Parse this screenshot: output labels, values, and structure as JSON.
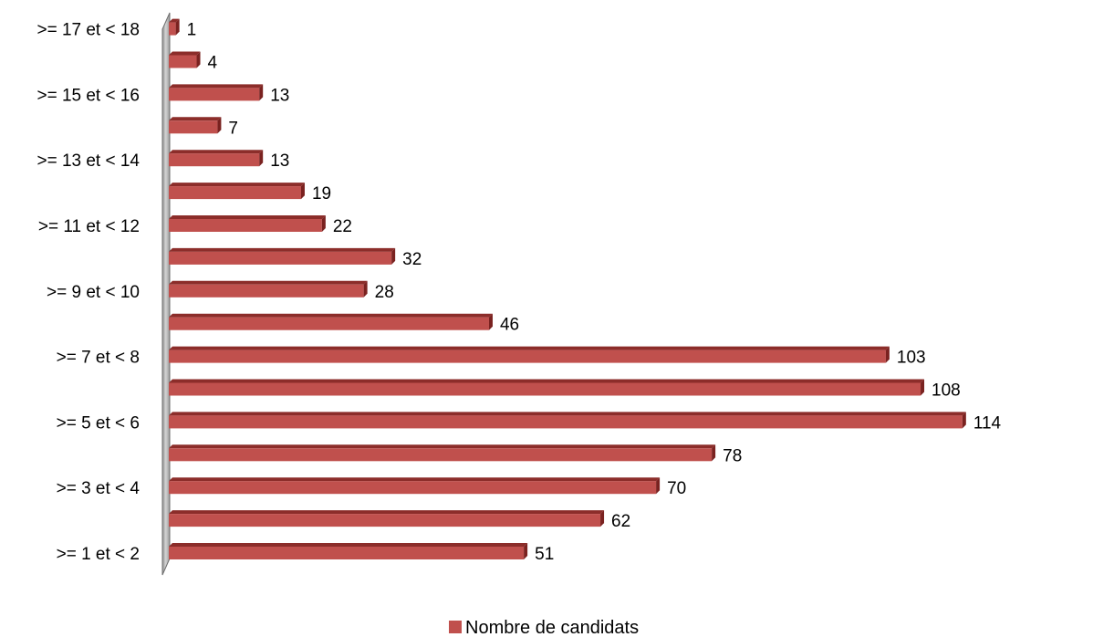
{
  "chart_data": {
    "type": "bar",
    "orientation": "horizontal",
    "three_d": true,
    "categories": [
      ">= 1 et < 2",
      ">= 2 et < 3",
      ">= 3 et < 4",
      ">= 4 et < 5",
      ">= 5 et < 6",
      ">= 6 et < 7",
      ">= 7 et < 8",
      ">= 8 et < 9",
      ">= 9 et < 10",
      ">= 10 et < 11",
      ">= 11 et < 12",
      ">= 12 et < 13",
      ">= 13 et < 14",
      ">= 14 et < 15",
      ">= 15 et < 16",
      ">= 16 et < 17",
      ">= 17 et < 18"
    ],
    "category_label_shown": [
      true,
      false,
      true,
      false,
      true,
      false,
      true,
      false,
      true,
      false,
      true,
      false,
      true,
      false,
      true,
      false,
      true
    ],
    "series": [
      {
        "name": "Nombre de candidats",
        "color": "#c0504d",
        "values": [
          51,
          62,
          70,
          78,
          114,
          108,
          103,
          46,
          28,
          32,
          22,
          19,
          13,
          7,
          13,
          4,
          1
        ]
      }
    ],
    "xlim": [
      0,
      114
    ],
    "grid": false,
    "x_axis_visible": false,
    "data_labels": true,
    "legend": "bottom-center",
    "title": "",
    "xlabel": "",
    "ylabel": ""
  }
}
